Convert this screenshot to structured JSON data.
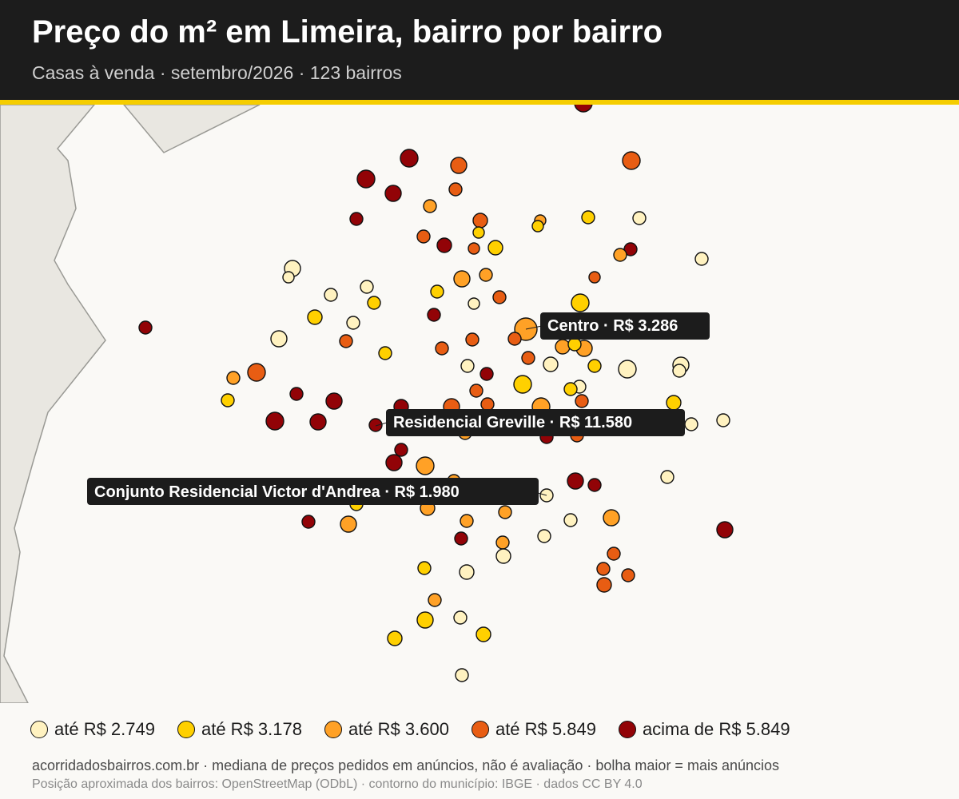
{
  "header": {
    "title": "Preço do m² em Limeira, bairro por bairro",
    "subtitle": "Casas à venda · setembro/2026 · 123 bairros"
  },
  "colors": {
    "header_bg": "#1c1c1c",
    "accent": "#f5cd00",
    "map_bg": "#faf9f6",
    "outside_area": "#e9e7e1",
    "boundary": "#9a9a95",
    "tier_1": "#fff2c0",
    "tier_2": "#ffd000",
    "tier_3": "#ffa126",
    "tier_4": "#e85d13",
    "tier_5": "#920307"
  },
  "legend": {
    "items": [
      {
        "label": "até R$ 2.749",
        "color": "#fff2c0"
      },
      {
        "label": "até R$ 3.178",
        "color": "#ffd000"
      },
      {
        "label": "até R$ 3.600",
        "color": "#ffa126"
      },
      {
        "label": "até R$ 5.849",
        "color": "#e85d13"
      },
      {
        "label": "acima de R$ 5.849",
        "color": "#920307"
      }
    ]
  },
  "labels": [
    {
      "text": "Centro · R$ 3.286"
    },
    {
      "text": "Residencial Greville · R$ 11.580"
    },
    {
      "text": "Conjunto Residencial Victor d'Andrea · R$ 1.980"
    }
  ],
  "footnotes": {
    "line1": "acorridadosbairros.com.br · mediana de preços pedidos em anúncios, não é avaliação · bolha maior = mais anúncios",
    "line2": "Posição aproximada dos bairros: OpenStreetMap (ODbL) · contorno do município: IBGE · dados CC BY 4.0"
  }
}
